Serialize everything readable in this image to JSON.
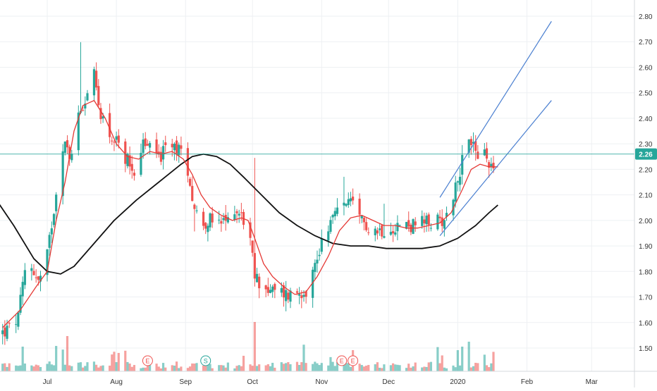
{
  "chart_data": {
    "type": "candlestick",
    "x_axis": {
      "tick_labels": [
        "Jul",
        "Aug",
        "Sep",
        "Oct",
        "Nov",
        "Dec",
        "2020",
        "Feb",
        "Mar"
      ],
      "tick_days": [
        0,
        31,
        62,
        92,
        123,
        153,
        184,
        215,
        244
      ]
    },
    "y_axis": {
      "range": [
        1.42,
        2.85
      ],
      "ticks": [
        1.5,
        1.6,
        1.7,
        1.8,
        1.9,
        2.0,
        2.1,
        2.2,
        2.3,
        2.4,
        2.5,
        2.6,
        2.7,
        2.8
      ],
      "tick_labels": [
        "1.50",
        "1.60",
        "1.70",
        "1.80",
        "1.90",
        "2.00",
        "2.10",
        "2.20",
        "2.30",
        "2.40",
        "2.50",
        "2.60",
        "2.70",
        "2.80"
      ],
      "position": "right"
    },
    "last_price": {
      "value": 2.26,
      "label": "2.26"
    },
    "candles_close_anchors": [
      [
        -20,
        1.56
      ],
      [
        -16,
        1.58
      ],
      [
        -13,
        1.62
      ],
      [
        -10,
        1.8
      ],
      [
        -7,
        1.82
      ],
      [
        -4,
        1.76
      ],
      [
        -1,
        1.8
      ],
      [
        3,
        2.05
      ],
      [
        7,
        2.3
      ],
      [
        11,
        2.25
      ],
      [
        14,
        2.42
      ],
      [
        18,
        2.5
      ],
      [
        20,
        2.62
      ],
      [
        23,
        2.45
      ],
      [
        27,
        2.35
      ],
      [
        31,
        2.3
      ],
      [
        35,
        2.25
      ],
      [
        39,
        2.2
      ],
      [
        43,
        2.3
      ],
      [
        47,
        2.28
      ],
      [
        51,
        2.25
      ],
      [
        55,
        2.3
      ],
      [
        59,
        2.28
      ],
      [
        63,
        2.2
      ],
      [
        66,
        2.05
      ],
      [
        69,
        1.99
      ],
      [
        73,
        2.0
      ],
      [
        77,
        1.98
      ],
      [
        81,
        2.0
      ],
      [
        84,
        2.05
      ],
      [
        87,
        2.02
      ],
      [
        90,
        1.98
      ],
      [
        93,
        1.78
      ],
      [
        96,
        1.75
      ],
      [
        100,
        1.72
      ],
      [
        104,
        1.72
      ],
      [
        108,
        1.71
      ],
      [
        112,
        1.72
      ],
      [
        116,
        1.73
      ],
      [
        120,
        1.82
      ],
      [
        124,
        1.95
      ],
      [
        127,
        2.0
      ],
      [
        131,
        2.04
      ],
      [
        134,
        2.08
      ],
      [
        137,
        2.05
      ],
      [
        140,
        2.0
      ],
      [
        144,
        1.98
      ],
      [
        148,
        1.96
      ],
      [
        152,
        1.97
      ],
      [
        156,
        1.98
      ],
      [
        160,
        1.98
      ],
      [
        164,
        1.98
      ],
      [
        168,
        1.99
      ],
      [
        172,
        1.99
      ],
      [
        176,
        2.0
      ],
      [
        179,
        2.02
      ],
      [
        182,
        2.1
      ],
      [
        185,
        2.2
      ],
      [
        188,
        2.28
      ],
      [
        190,
        2.32
      ],
      [
        193,
        2.26
      ],
      [
        196,
        2.25
      ],
      [
        199,
        2.22
      ],
      [
        202,
        2.25
      ]
    ],
    "ma_short_anchors": [
      [
        -20,
        1.58
      ],
      [
        -12,
        1.65
      ],
      [
        -5,
        1.74
      ],
      [
        0,
        1.8
      ],
      [
        4,
        2.0
      ],
      [
        8,
        2.15
      ],
      [
        12,
        2.35
      ],
      [
        16,
        2.45
      ],
      [
        21,
        2.47
      ],
      [
        26,
        2.4
      ],
      [
        31,
        2.3
      ],
      [
        36,
        2.25
      ],
      [
        41,
        2.24
      ],
      [
        46,
        2.27
      ],
      [
        51,
        2.26
      ],
      [
        56,
        2.27
      ],
      [
        61,
        2.24
      ],
      [
        65,
        2.18
      ],
      [
        69,
        2.1
      ],
      [
        73,
        2.05
      ],
      [
        78,
        2.02
      ],
      [
        83,
        2.0
      ],
      [
        87,
        2.01
      ],
      [
        90,
        2.0
      ],
      [
        93,
        1.93
      ],
      [
        97,
        1.83
      ],
      [
        101,
        1.78
      ],
      [
        106,
        1.74
      ],
      [
        111,
        1.71
      ],
      [
        116,
        1.72
      ],
      [
        121,
        1.78
      ],
      [
        126,
        1.86
      ],
      [
        131,
        1.96
      ],
      [
        136,
        2.01
      ],
      [
        141,
        2.02
      ],
      [
        146,
        2.0
      ],
      [
        151,
        1.98
      ],
      [
        156,
        1.98
      ],
      [
        161,
        1.97
      ],
      [
        166,
        1.97
      ],
      [
        171,
        1.98
      ],
      [
        176,
        1.99
      ],
      [
        181,
        2.03
      ],
      [
        186,
        2.12
      ],
      [
        190,
        2.2
      ],
      [
        194,
        2.22
      ],
      [
        198,
        2.21
      ],
      [
        202,
        2.21
      ]
    ],
    "ma_long_anchors": [
      [
        -22,
        2.07
      ],
      [
        -15,
        1.98
      ],
      [
        -6,
        1.85
      ],
      [
        0,
        1.8
      ],
      [
        6,
        1.79
      ],
      [
        12,
        1.82
      ],
      [
        20,
        1.9
      ],
      [
        30,
        2.0
      ],
      [
        40,
        2.08
      ],
      [
        50,
        2.15
      ],
      [
        60,
        2.22
      ],
      [
        65,
        2.25
      ],
      [
        70,
        2.26
      ],
      [
        76,
        2.25
      ],
      [
        82,
        2.22
      ],
      [
        88,
        2.17
      ],
      [
        96,
        2.1
      ],
      [
        104,
        2.03
      ],
      [
        112,
        1.98
      ],
      [
        120,
        1.94
      ],
      [
        128,
        1.91
      ],
      [
        136,
        1.9
      ],
      [
        144,
        1.9
      ],
      [
        152,
        1.89
      ],
      [
        160,
        1.89
      ],
      [
        168,
        1.89
      ],
      [
        176,
        1.9
      ],
      [
        184,
        1.93
      ],
      [
        192,
        1.98
      ],
      [
        198,
        2.03
      ],
      [
        202,
        2.06
      ]
    ],
    "trend_lines": [
      {
        "from": [
          176,
          2.09
        ],
        "to": [
          226,
          2.78
        ]
      },
      {
        "from": [
          176,
          1.94
        ],
        "to": [
          226,
          2.47
        ]
      }
    ],
    "event_markers": [
      {
        "label": "E",
        "day": 45
      },
      {
        "label": "S",
        "day": 71
      },
      {
        "label": "E",
        "day": 132
      },
      {
        "label": "E",
        "day": 137
      }
    ],
    "series": [
      {
        "type": "candles"
      },
      {
        "type": "moving-average-short"
      },
      {
        "type": "moving-average-long"
      },
      {
        "type": "volume"
      }
    ],
    "colors": {
      "up": "#26a69a",
      "down": "#ef5350",
      "ma_short": "#e53935",
      "ma_long": "#111111",
      "trend_line": "#4a7fd0",
      "price_line": "#26a69a",
      "price_badge": "#26a69a",
      "grid": "#eef0f3",
      "axis_text": "#333333"
    },
    "grid": true
  }
}
